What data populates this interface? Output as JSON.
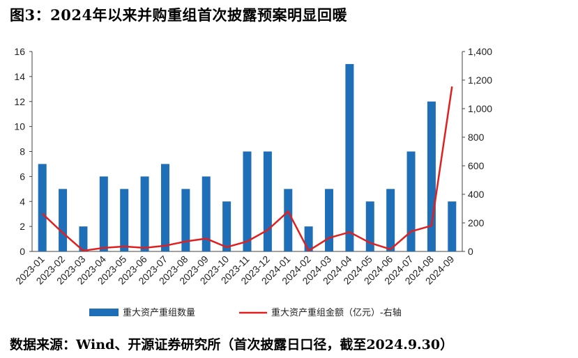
{
  "title": "图3：2024年以来并购重组首次披露预案明显回暖",
  "source": "数据来源：Wind、开源证券研究所（首次披露日口径，截至2024.9.30）",
  "colors": {
    "bar": "#1f6fb8",
    "line": "#e0201f",
    "axis": "#404040"
  },
  "chart_data": {
    "type": "bar+line",
    "categories": [
      "2023-01",
      "2023-02",
      "2023-03",
      "2023-04",
      "2023-05",
      "2023-06",
      "2023-07",
      "2023-08",
      "2023-09",
      "2023-10",
      "2023-11",
      "2023-12",
      "2024-01",
      "2024-02",
      "2024-03",
      "2024-04",
      "2024-05",
      "2024-06",
      "2024-07",
      "2024-08",
      "2024-09"
    ],
    "series": [
      {
        "name": "重大资产重组数量",
        "type": "bar",
        "axis": "left",
        "values": [
          7,
          5,
          2,
          6,
          5,
          6,
          7,
          5,
          6,
          4,
          8,
          8,
          5,
          2,
          5,
          15,
          4,
          5,
          8,
          12,
          4
        ]
      },
      {
        "name": "重大资产重组金额（亿元）-右轴",
        "type": "line",
        "axis": "right",
        "values": [
          265,
          130,
          5,
          25,
          35,
          25,
          40,
          70,
          90,
          30,
          70,
          150,
          280,
          5,
          95,
          135,
          60,
          15,
          140,
          180,
          1155
        ]
      }
    ],
    "left_axis": {
      "ylim": [
        0,
        16
      ],
      "ticks": [
        "0",
        "2",
        "4",
        "6",
        "8",
        "10",
        "12",
        "14",
        "16"
      ]
    },
    "right_axis": {
      "ylim": [
        0,
        1400
      ],
      "ticks": [
        "0",
        "200",
        "400",
        "600",
        "800",
        "1,000",
        "1,200",
        "1,400"
      ]
    },
    "legend_position": "bottom",
    "grid": false
  }
}
